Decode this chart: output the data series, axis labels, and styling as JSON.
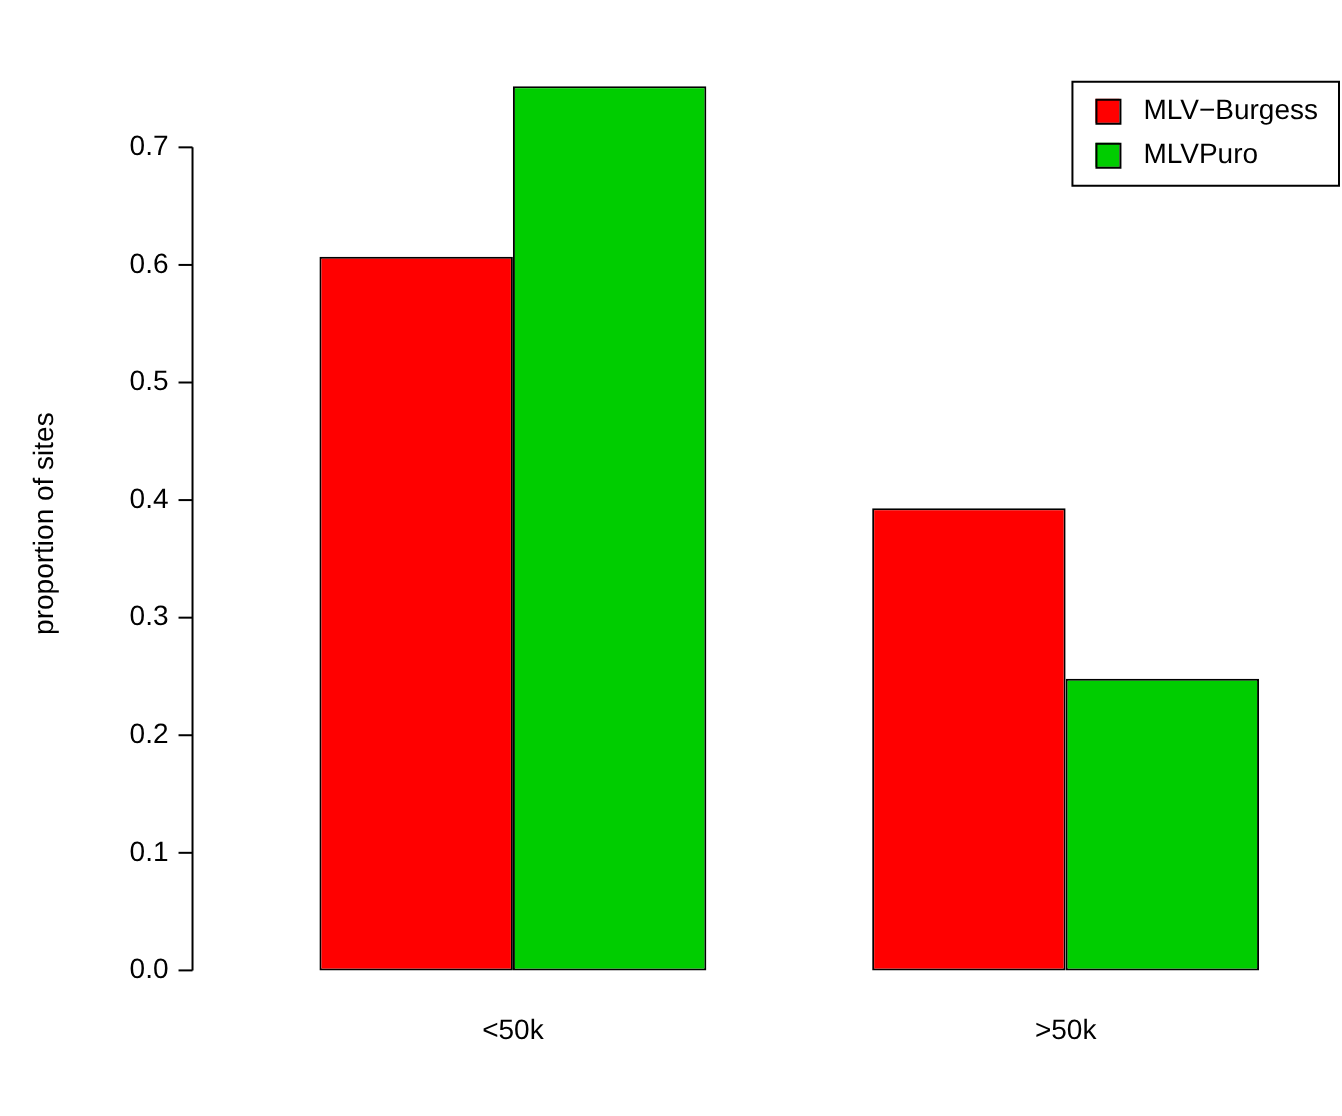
{
  "chart_data": {
    "type": "bar",
    "ylabel": "proportion of sites",
    "categories": [
      "<50k",
      ">50k"
    ],
    "series": [
      {
        "name": "MLV−Burgess",
        "color": "#ff0000",
        "values": [
          0.607,
          0.393
        ]
      },
      {
        "name": "MLVPuro",
        "color": "#00cd00",
        "values": [
          0.752,
          0.248
        ]
      }
    ],
    "ylim": [
      0,
      0.76
    ],
    "yticks": [
      {
        "value": 0,
        "label": "0.0"
      },
      {
        "value": 0.1,
        "label": "0.1"
      },
      {
        "value": 0.2,
        "label": "0.2"
      },
      {
        "value": 0.3,
        "label": "0.3"
      },
      {
        "value": 0.4,
        "label": "0.4"
      },
      {
        "value": 0.5,
        "label": "0.5"
      },
      {
        "value": 0.6,
        "label": "0.6"
      },
      {
        "value": 0.7,
        "label": "0.7"
      }
    ],
    "grid": false,
    "legend": "top right"
  }
}
